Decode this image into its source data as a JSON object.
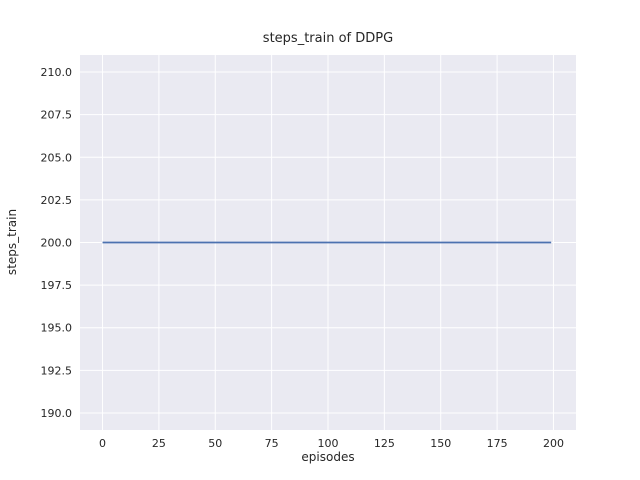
{
  "chart_data": {
    "type": "line",
    "title": "steps_train of DDPG",
    "xlabel": "episodes",
    "ylabel": "steps_train",
    "xlim": [
      -10,
      210
    ],
    "ylim": [
      189,
      211
    ],
    "xticks": [
      0,
      25,
      50,
      75,
      100,
      125,
      150,
      175,
      200
    ],
    "xtick_labels": [
      "0",
      "25",
      "50",
      "75",
      "100",
      "125",
      "150",
      "175",
      "200"
    ],
    "yticks": [
      190,
      192.5,
      195,
      197.5,
      200,
      202.5,
      205,
      207.5,
      210
    ],
    "ytick_labels": [
      "190.0",
      "192.5",
      "195.0",
      "197.5",
      "200.0",
      "202.5",
      "205.0",
      "207.5",
      "210.0"
    ],
    "grid": true,
    "legend": "none",
    "colors": {
      "plot_background": "#eaeaf2",
      "grid_line": "#ffffff",
      "series_line": "#4c72b0",
      "text": "#262626"
    },
    "series": [
      {
        "name": "steps_train",
        "x": [
          0,
          199
        ],
        "y": [
          200,
          200
        ]
      }
    ]
  }
}
